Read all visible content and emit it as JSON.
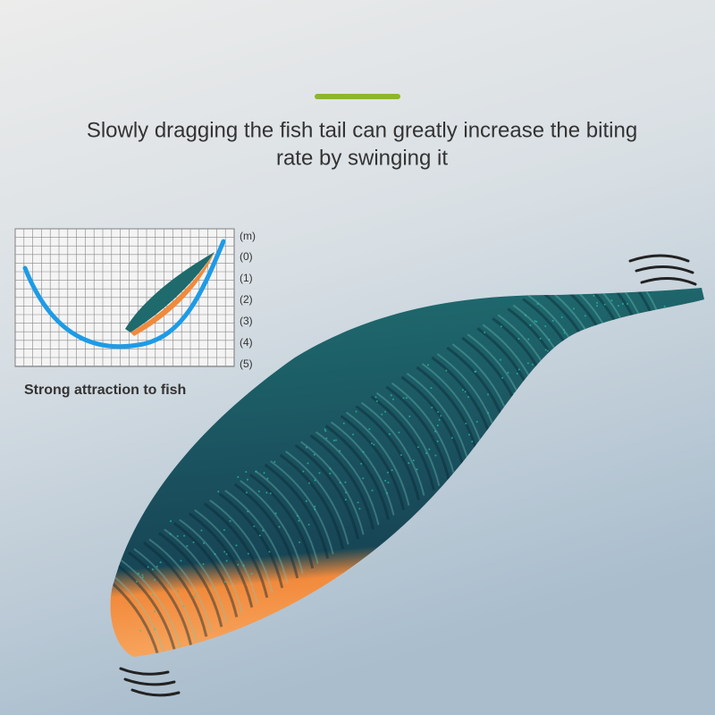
{
  "header": {
    "title_lines": [
      "Slowly dragging the fish tail can greatly increase the biting",
      "rate by swinging it"
    ]
  },
  "depth_chart": {
    "unit_label": "(m)",
    "depth_labels": [
      "(0)",
      "(1)",
      "(2)",
      "(3)",
      "(4)",
      "(5)"
    ],
    "caption": "Strong attraction to fish"
  }
}
